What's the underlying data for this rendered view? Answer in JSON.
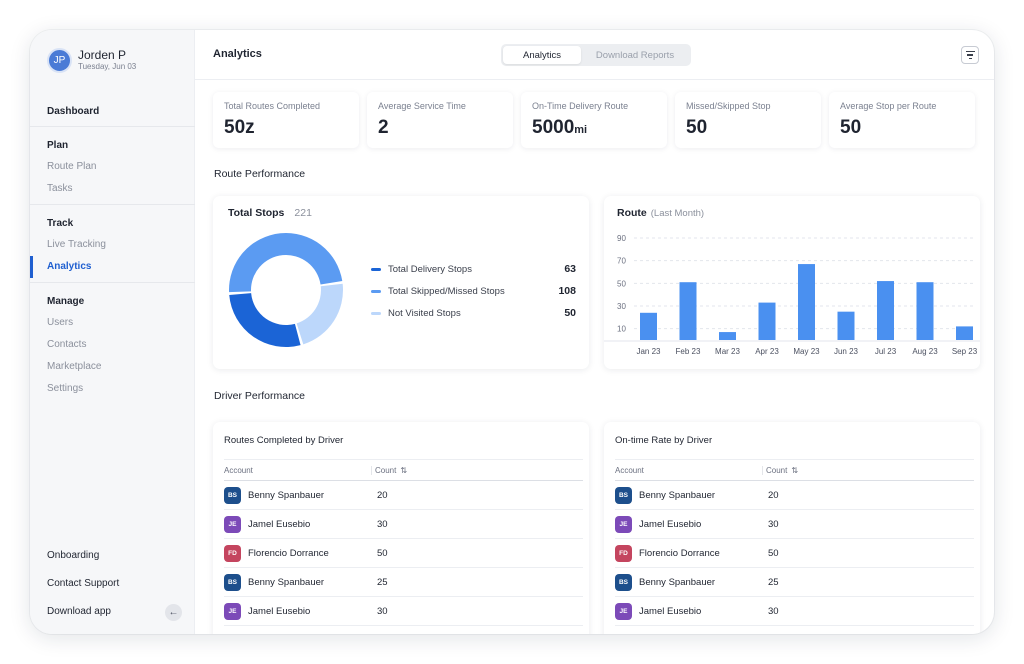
{
  "profile": {
    "initials": "JP",
    "name": "Jorden P",
    "date": "Tuesday, Jun 03"
  },
  "sidebar": {
    "dashboard": "Dashboard",
    "groups": [
      {
        "title": "Plan",
        "items": [
          "Route Plan",
          "Tasks"
        ]
      },
      {
        "title": "Track",
        "items": [
          "Live Tracking",
          "Analytics"
        ]
      },
      {
        "title": "Manage",
        "items": [
          "Users",
          "Contacts",
          "Marketplace",
          "Settings"
        ]
      }
    ],
    "active_item": "Analytics",
    "bottom": [
      "Onboarding",
      "Contact Support",
      "Download app"
    ],
    "collapse_icon": "arrow-left-icon"
  },
  "header": {
    "title": "Analytics",
    "tabs": [
      "Analytics",
      "Download Reports"
    ],
    "active_tab": "Analytics",
    "filter_icon": "filter-icon"
  },
  "stats": [
    {
      "label": "Total Routes Completed",
      "value": "50z",
      "unit": ""
    },
    {
      "label": "Average Service Time",
      "value": "2",
      "unit": ""
    },
    {
      "label": "On-Time Delivery Route",
      "value": "5000",
      "unit": "mi"
    },
    {
      "label": "Missed/Skipped Stop",
      "value": "50",
      "unit": ""
    },
    {
      "label": "Average Stop per Route",
      "value": "50",
      "unit": ""
    }
  ],
  "route_performance": {
    "section_title": "Route Performance",
    "donut": {
      "title": "Total Stops",
      "total": "221",
      "legend": [
        {
          "label": "Total Delivery Stops",
          "value": "63",
          "color": "#1b64d6"
        },
        {
          "label": "Total Skipped/Missed Stops",
          "value": "108",
          "color": "#5b9bf2"
        },
        {
          "label": "Not Visited Stops",
          "value": "50",
          "color": "#bcd7fb"
        }
      ]
    },
    "bar": {
      "title": "Route",
      "subtitle": "(Last Month)"
    }
  },
  "chart_data": [
    {
      "type": "pie",
      "title": "Total Stops",
      "categories": [
        "Total Delivery Stops",
        "Total Skipped/Missed Stops",
        "Not Visited Stops"
      ],
      "values": [
        63,
        108,
        50
      ],
      "colors": [
        "#1b64d6",
        "#5b9bf2",
        "#bcd7fb"
      ]
    },
    {
      "type": "bar",
      "title": "Route",
      "subtitle": "(Last Month)",
      "categories": [
        "Jan 23",
        "Feb 23",
        "Mar 23",
        "Apr 23",
        "May 23",
        "Jun 23",
        "Jul 23",
        "Aug 23",
        "Sep 23"
      ],
      "values": [
        24,
        51,
        7,
        33,
        67,
        25,
        52,
        51,
        12
      ],
      "yticks": [
        10,
        30,
        50,
        70,
        90
      ],
      "ylim": [
        0,
        90
      ],
      "grid": true,
      "color": "#4a90f0"
    }
  ],
  "driver_performance": {
    "section_title": "Driver Performance",
    "tables": [
      {
        "title": "Routes Completed by Driver",
        "col_account": "Account",
        "col_count": "Count",
        "sort_icon": "sort-icon",
        "rows": [
          {
            "initials": "BS",
            "name": "Benny Spanbauer",
            "count": "20",
            "color": "#1d4f8c"
          },
          {
            "initials": "JE",
            "name": "Jamel Eusebio",
            "count": "30",
            "color": "#7c4ab8"
          },
          {
            "initials": "FD",
            "name": "Florencio Dorrance",
            "count": "50",
            "color": "#c4455f"
          },
          {
            "initials": "BS",
            "name": "Benny Spanbauer",
            "count": "25",
            "color": "#1d4f8c"
          },
          {
            "initials": "JE",
            "name": "Jamel Eusebio",
            "count": "30",
            "color": "#7c4ab8"
          }
        ]
      },
      {
        "title": "On-time Rate by Driver",
        "col_account": "Account",
        "col_count": "Count",
        "sort_icon": "sort-icon",
        "rows": [
          {
            "initials": "BS",
            "name": "Benny Spanbauer",
            "count": "20",
            "color": "#1d4f8c"
          },
          {
            "initials": "JE",
            "name": "Jamel Eusebio",
            "count": "30",
            "color": "#7c4ab8"
          },
          {
            "initials": "FD",
            "name": "Florencio Dorrance",
            "count": "50",
            "color": "#c4455f"
          },
          {
            "initials": "BS",
            "name": "Benny Spanbauer",
            "count": "25",
            "color": "#1d4f8c"
          },
          {
            "initials": "JE",
            "name": "Jamel Eusebio",
            "count": "30",
            "color": "#7c4ab8"
          }
        ]
      }
    ]
  }
}
